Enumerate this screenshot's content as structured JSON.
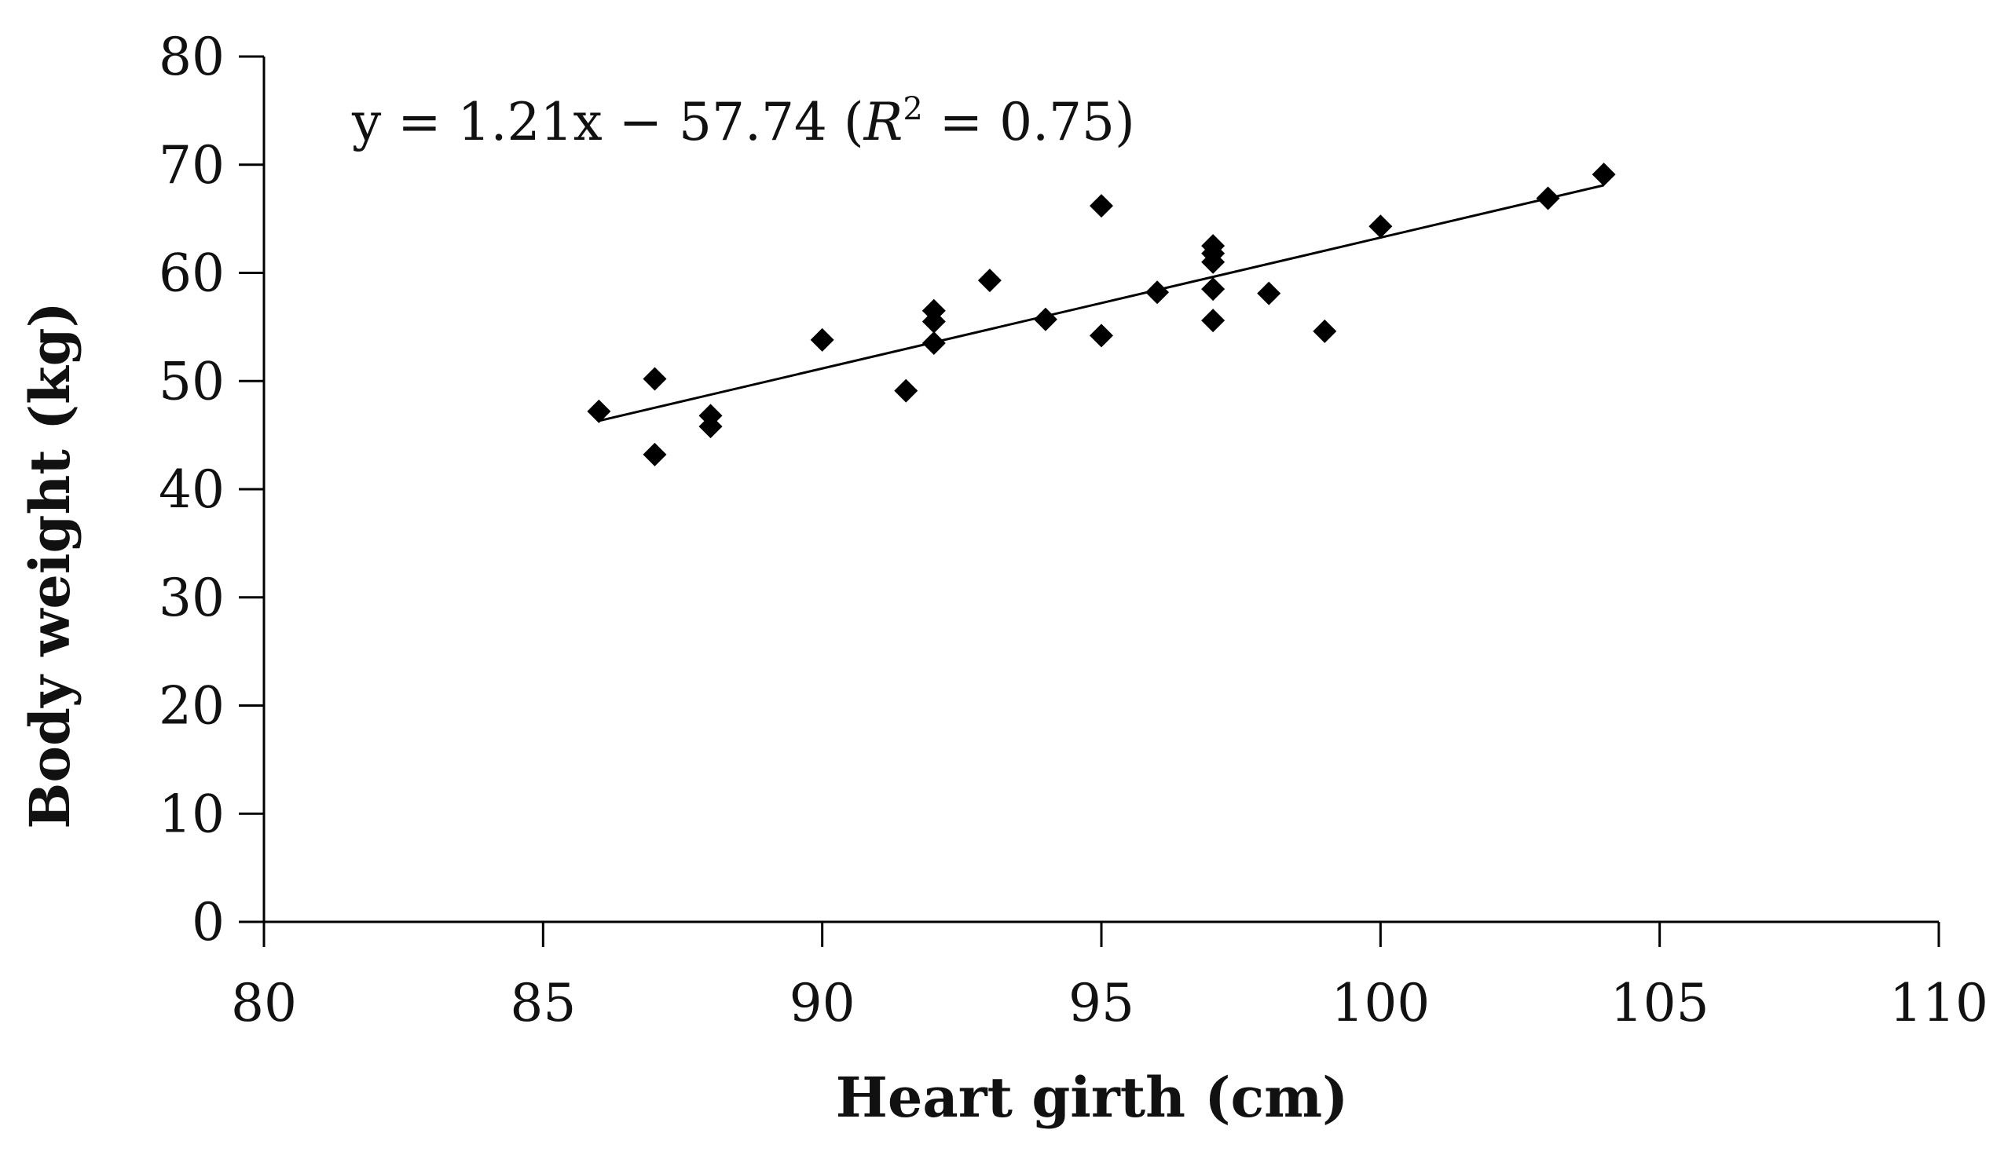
{
  "chart_data": {
    "type": "scatter",
    "title": "",
    "xlabel": "Heart girth (cm)",
    "ylabel": "Body weight (kg)",
    "xlim": [
      80,
      110
    ],
    "ylim": [
      0,
      80
    ],
    "xticks": [
      80,
      85,
      90,
      95,
      100,
      105,
      110
    ],
    "yticks": [
      0,
      10,
      20,
      30,
      40,
      50,
      60,
      70,
      80
    ],
    "grid": false,
    "legend": "none",
    "series": [
      {
        "name": "Body weight",
        "marker": "diamond",
        "color": "#000000",
        "points": [
          {
            "x": 86,
            "y": 47.2
          },
          {
            "x": 87,
            "y": 50.2
          },
          {
            "x": 87,
            "y": 43.2
          },
          {
            "x": 88,
            "y": 46.8
          },
          {
            "x": 88,
            "y": 45.8
          },
          {
            "x": 90,
            "y": 53.8
          },
          {
            "x": 91.5,
            "y": 49.1
          },
          {
            "x": 92,
            "y": 56.5
          },
          {
            "x": 92,
            "y": 55.5
          },
          {
            "x": 92,
            "y": 53.5
          },
          {
            "x": 93,
            "y": 59.3
          },
          {
            "x": 94,
            "y": 55.7
          },
          {
            "x": 95,
            "y": 66.2
          },
          {
            "x": 95,
            "y": 54.2
          },
          {
            "x": 96,
            "y": 58.2
          },
          {
            "x": 97,
            "y": 62.5
          },
          {
            "x": 97,
            "y": 61.8
          },
          {
            "x": 97,
            "y": 61.0
          },
          {
            "x": 97,
            "y": 58.5
          },
          {
            "x": 97,
            "y": 55.6
          },
          {
            "x": 98,
            "y": 58.1
          },
          {
            "x": 99,
            "y": 54.6
          },
          {
            "x": 100,
            "y": 64.3
          },
          {
            "x": 103,
            "y": 66.9
          },
          {
            "x": 104,
            "y": 69.1
          }
        ]
      }
    ],
    "trendline": {
      "type": "linear",
      "slope": 1.21,
      "intercept": -57.74,
      "x_from": 86,
      "x_to": 104
    },
    "annotation": {
      "prefix": "y = 1.21x − 57.74 (",
      "r": "R",
      "sup": "2",
      "suffix": " = 0.75)"
    }
  }
}
